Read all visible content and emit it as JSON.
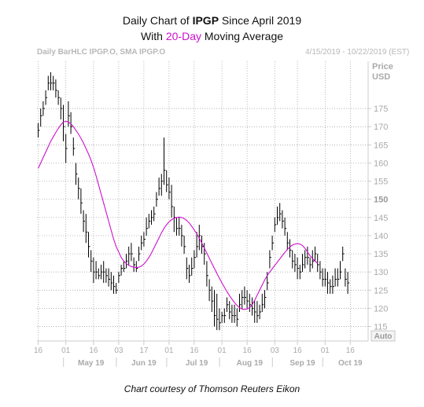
{
  "header": {
    "line1_prefix": "Daily Chart of ",
    "line1_ticker": "IPGP",
    "line1_suffix": " Since April 2019",
    "line2_prefix": "With ",
    "line2_highlight": "20-Day",
    "line2_suffix": " Moving Average",
    "source_label": "Daily BarHLC IPGP.O, SMA IPGP.O",
    "date_range": "4/15/2019 - 10/22/2019 (EST)"
  },
  "footer": {
    "credit": "Chart courtesy of Thomson Reuters Eikon"
  },
  "colors": {
    "bars": "#000000",
    "sma": "#cc11cc",
    "grid": "#999999",
    "axis_text": "#aaaaaa"
  },
  "chart_data": {
    "type": "bar",
    "subtype": "ohlc-hlc",
    "title": "Daily Chart of IPGP Since April 2019",
    "subtitle": "With 20-Day Moving Average",
    "ylabel_lines": [
      "Price",
      "USD"
    ],
    "ylim": [
      111,
      188
    ],
    "yticks": [
      115,
      120,
      125,
      130,
      135,
      140,
      145,
      150,
      155,
      160,
      165,
      170,
      175
    ],
    "highlight_ytick": 150,
    "y_axis_mode": "Auto",
    "grid": true,
    "x_day_ticks": [
      {
        "label": "16",
        "i": 0
      },
      {
        "label": "01",
        "i": 11
      },
      {
        "label": "16",
        "i": 22
      },
      {
        "label": "03",
        "i": 32
      },
      {
        "label": "17",
        "i": 42
      },
      {
        "label": "01",
        "i": 52
      },
      {
        "label": "16",
        "i": 62
      },
      {
        "label": "01",
        "i": 73
      },
      {
        "label": "16",
        "i": 83
      },
      {
        "label": "03",
        "i": 94
      },
      {
        "label": "16",
        "i": 103
      },
      {
        "label": "01",
        "i": 114
      },
      {
        "label": "16",
        "i": 124
      }
    ],
    "x_month_labels": [
      {
        "label": "May 19",
        "i": 21
      },
      {
        "label": "Jun 19",
        "i": 42
      },
      {
        "label": "Jul 19",
        "i": 63
      },
      {
        "label": "Aug 19",
        "i": 84
      },
      {
        "label": "Sep 19",
        "i": 105
      },
      {
        "label": "Oct 19",
        "i": 124
      }
    ],
    "series": [
      {
        "name": "Daily BarHLC IPGP.O",
        "type": "hlc",
        "high": [
          171,
          175,
          177,
          180,
          184,
          185,
          184,
          183,
          180,
          178,
          176,
          168,
          177,
          174,
          167,
          160,
          156,
          153,
          147,
          146,
          141,
          136,
          134,
          133,
          131,
          132,
          133,
          131,
          131,
          130,
          129,
          127,
          130,
          132,
          133,
          135,
          137,
          138,
          134,
          133,
          137,
          140,
          141,
          145,
          146,
          147,
          148,
          152,
          156,
          157,
          167,
          158,
          156,
          154,
          148,
          145,
          145,
          143,
          140,
          134,
          132,
          134,
          136,
          141,
          143,
          140,
          138,
          133,
          128,
          126,
          125,
          124,
          120,
          119,
          120,
          123,
          122,
          121,
          121,
          120,
          124,
          125,
          126,
          125,
          124,
          123,
          122,
          122,
          121,
          124,
          125,
          130,
          136,
          140,
          145,
          148,
          149,
          147,
          145,
          141,
          139,
          136,
          135,
          134,
          132,
          135,
          136,
          137,
          134,
          136,
          137,
          135,
          133,
          131,
          131,
          130,
          128,
          129,
          131,
          131,
          133,
          137,
          131,
          130
        ],
        "low": [
          167,
          170,
          173,
          176,
          180,
          180,
          180,
          178,
          176,
          172,
          166,
          160,
          170,
          168,
          162,
          154,
          150,
          146,
          141,
          138,
          134,
          130,
          127,
          128,
          128,
          128,
          127,
          127,
          126,
          125,
          124,
          124,
          127,
          129,
          130,
          131,
          132,
          133,
          130,
          130,
          133,
          136,
          137,
          140,
          142,
          143,
          144,
          148,
          151,
          151,
          154,
          152,
          150,
          145,
          141,
          140,
          140,
          137,
          135,
          128,
          127,
          129,
          131,
          134,
          136,
          135,
          132,
          126,
          122,
          119,
          115,
          114,
          114,
          116,
          116,
          119,
          117,
          116,
          116,
          115,
          119,
          120,
          121,
          120,
          119,
          118,
          116,
          116,
          117,
          119,
          120,
          125,
          131,
          136,
          141,
          143,
          144,
          142,
          140,
          136,
          134,
          131,
          130,
          128,
          128,
          130,
          131,
          132,
          130,
          131,
          133,
          130,
          128,
          126,
          126,
          124,
          124,
          124,
          126,
          126,
          128,
          133,
          126,
          124
        ],
        "close": [
          169,
          173,
          175,
          178,
          182,
          182,
          182,
          180,
          178,
          175,
          170,
          164,
          173,
          170,
          164,
          157,
          153,
          149,
          144,
          141,
          137,
          133,
          130,
          130,
          129,
          130,
          130,
          129,
          128,
          127,
          126,
          125,
          129,
          131,
          131,
          133,
          135,
          135,
          132,
          131,
          135,
          138,
          139,
          142,
          144,
          145,
          146,
          150,
          153,
          155,
          158,
          154,
          152,
          148,
          145,
          142,
          142,
          140,
          137,
          131,
          129,
          131,
          134,
          137,
          140,
          137,
          135,
          129,
          125,
          122,
          118,
          117,
          116,
          118,
          118,
          121,
          119,
          118,
          118,
          117,
          121,
          123,
          123,
          122,
          121,
          120,
          119,
          118,
          119,
          121,
          123,
          127,
          134,
          138,
          143,
          145,
          146,
          144,
          142,
          138,
          136,
          133,
          132,
          131,
          130,
          132,
          134,
          134,
          132,
          133,
          135,
          132,
          130,
          128,
          128,
          127,
          126,
          126,
          128,
          128,
          130,
          135,
          128,
          127
        ]
      },
      {
        "name": "SMA IPGP.O",
        "type": "line",
        "period": 20,
        "values": [
          158.5,
          160,
          161.5,
          163,
          164.5,
          166,
          167.2,
          168.4,
          169.5,
          170.5,
          171.3,
          171.5,
          171.3,
          170.8,
          170,
          169,
          168,
          166.8,
          165.5,
          164,
          162.5,
          160.8,
          158.8,
          156.5,
          154,
          151.5,
          149,
          146.5,
          144,
          141.5,
          139,
          137,
          135.5,
          134,
          133,
          132.3,
          131.8,
          131.5,
          131.3,
          131.2,
          131.3,
          131.6,
          132.2,
          133,
          134,
          135.2,
          136.6,
          138,
          139.4,
          140.8,
          142,
          143,
          143.8,
          144.4,
          144.8,
          145,
          145.1,
          145,
          144.7,
          144.2,
          143.5,
          142.6,
          141.6,
          140.5,
          139.3,
          138,
          136.6,
          135.2,
          133.8,
          132.4,
          131,
          129.6,
          128.3,
          127,
          125.8,
          124.6,
          123.5,
          122.5,
          121.6,
          120.8,
          120.2,
          119.8,
          119.7,
          119.8,
          120.2,
          121,
          122.2,
          123.6,
          125,
          126.4,
          127.8,
          129,
          130,
          130.9,
          131.8,
          132.7,
          133.6,
          134.5,
          135.4,
          136.2,
          136.9,
          137.4,
          137.7,
          137.8,
          137.7,
          137.3,
          136.5,
          135.5,
          134.5,
          133.7,
          133,
          132.4
        ]
      }
    ]
  }
}
